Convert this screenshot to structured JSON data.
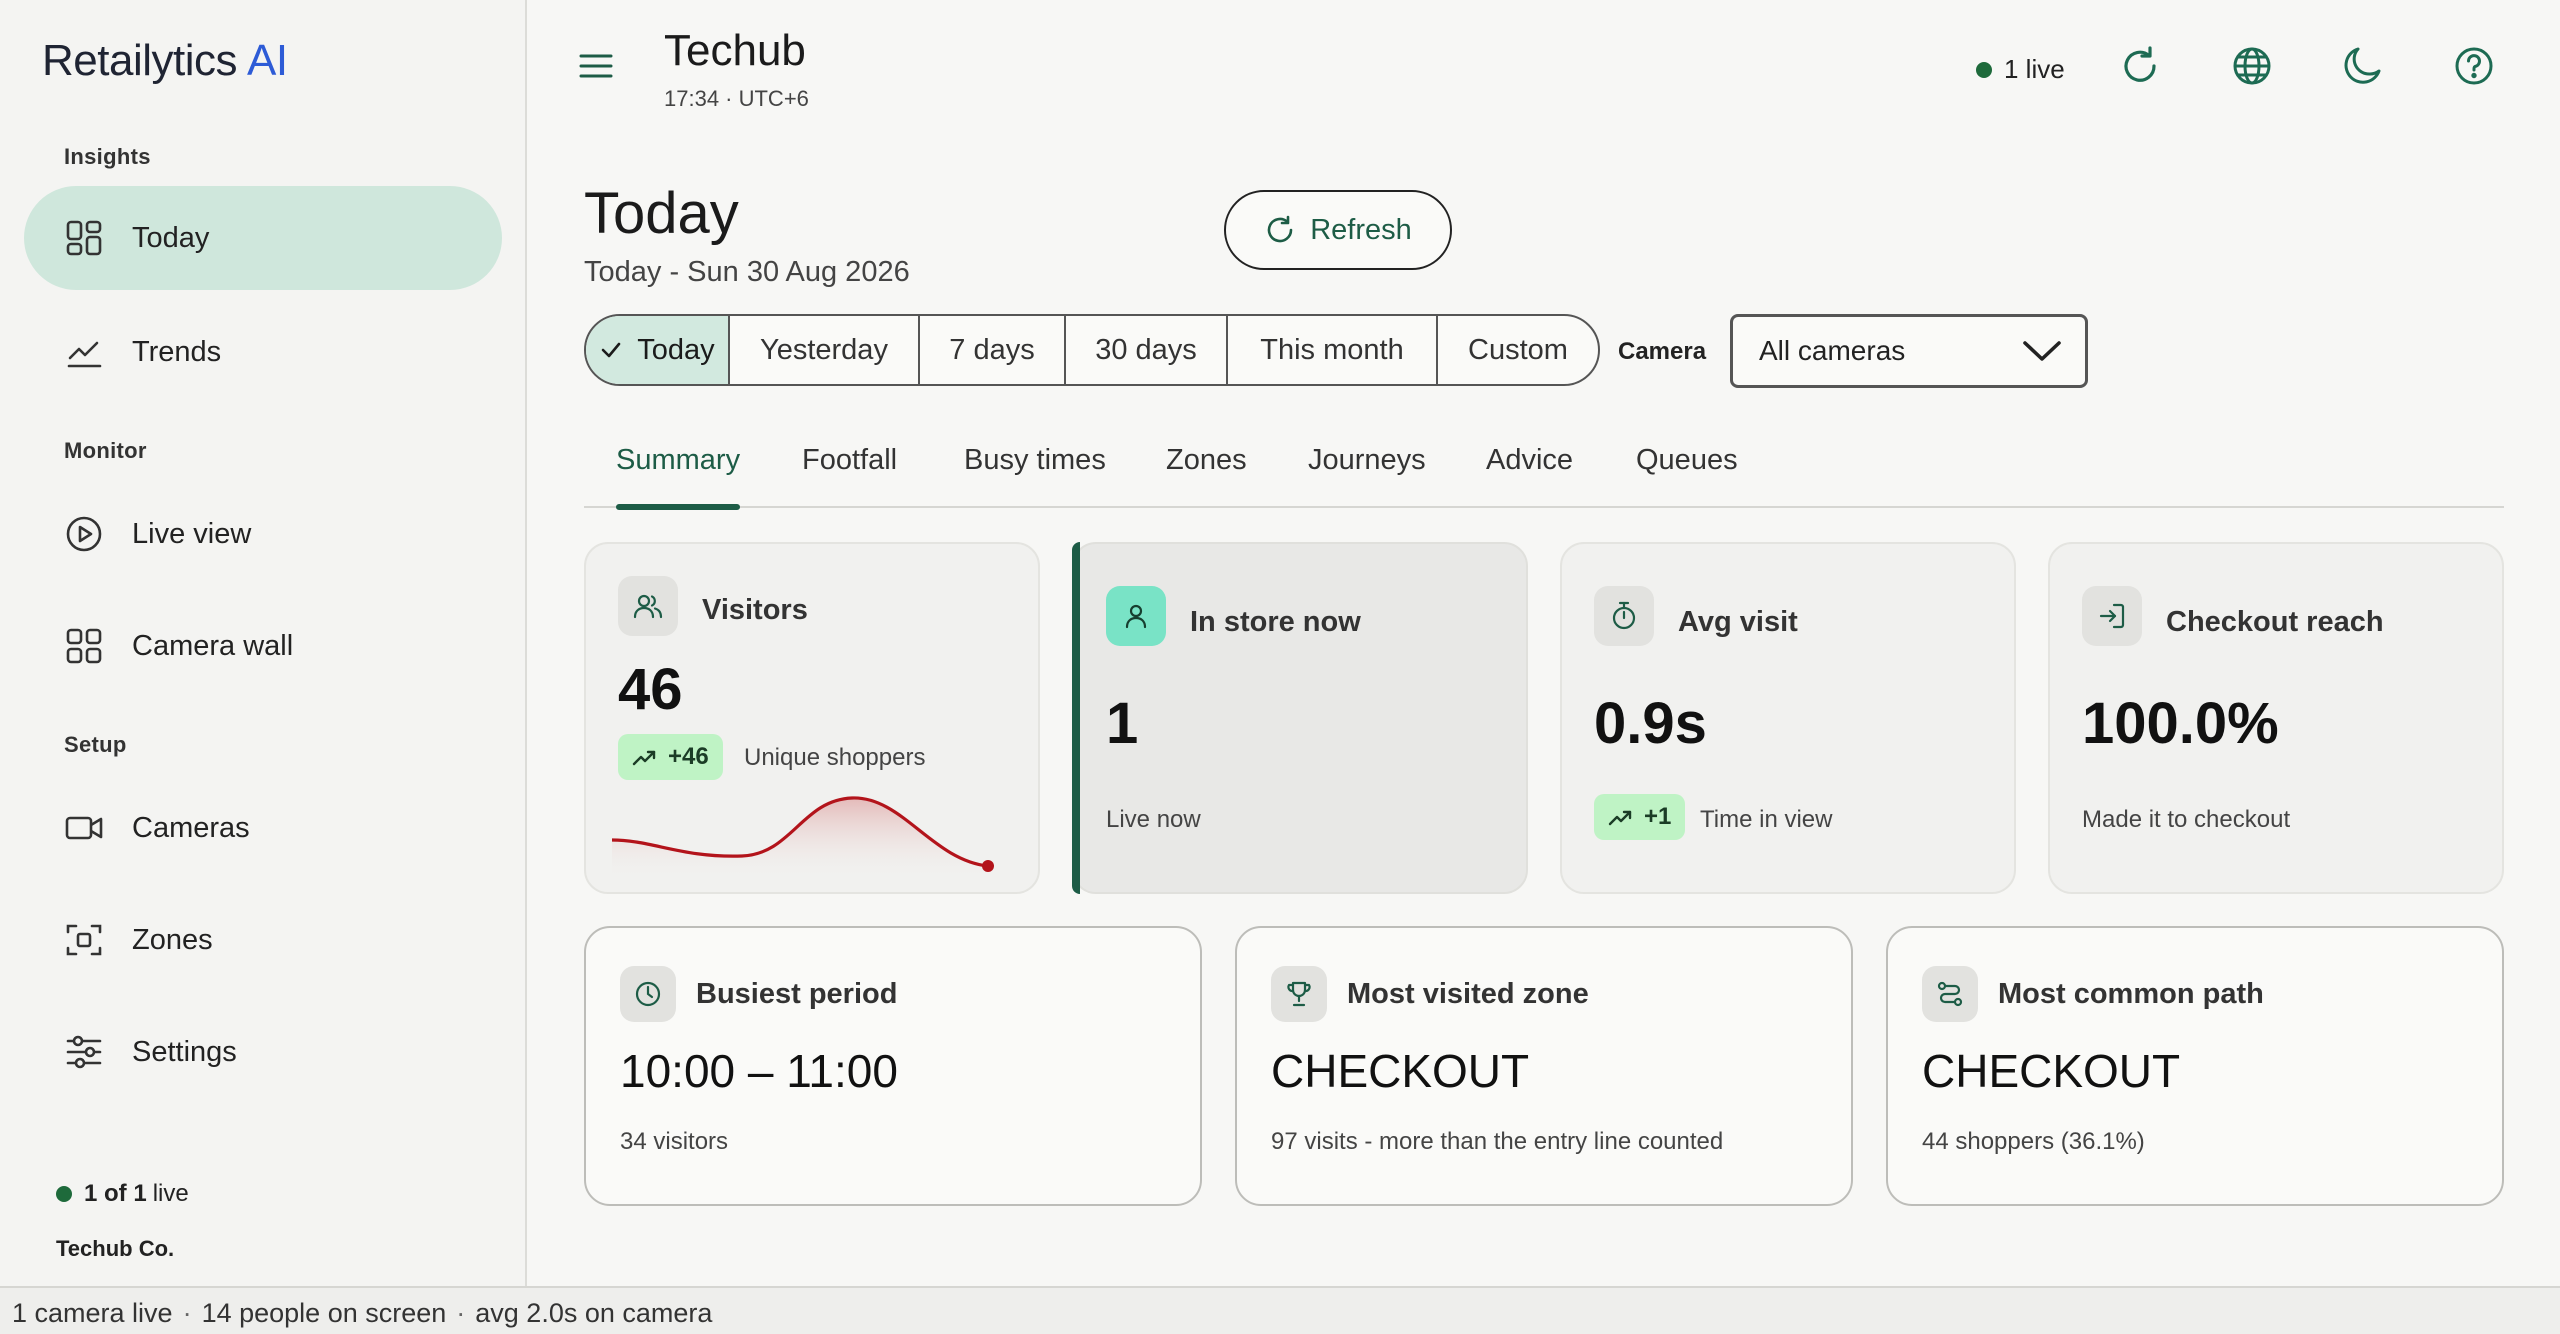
{
  "brand": {
    "name": "Retailytics",
    "suffix": "AI"
  },
  "sidebar": {
    "sections": [
      {
        "label": "Insights"
      },
      {
        "label": "Monitor"
      },
      {
        "label": "Setup"
      }
    ],
    "items": [
      {
        "label": "Today",
        "icon": "dashboard-icon",
        "active": true
      },
      {
        "label": "Trends",
        "icon": "trend-chart-icon"
      },
      {
        "label": "Live view",
        "icon": "play-circle-icon"
      },
      {
        "label": "Camera wall",
        "icon": "grid-icon"
      },
      {
        "label": "Cameras",
        "icon": "video-camera-icon"
      },
      {
        "label": "Zones",
        "icon": "zone-frame-icon"
      },
      {
        "label": "Settings",
        "icon": "sliders-icon"
      }
    ],
    "live_count_bold": "1 of 1",
    "live_suffix": "live",
    "org": "Techub Co."
  },
  "header": {
    "store": "Techub",
    "time": "17:34 · UTC+6",
    "live": "1 live",
    "buttons": [
      "refresh-icon",
      "globe-icon",
      "moon-icon",
      "help-icon"
    ]
  },
  "page": {
    "title": "Today",
    "date": "Today - Sun 30 Aug 2026",
    "refresh_label": "Refresh"
  },
  "ranges": [
    {
      "label": "Today",
      "active": true
    },
    {
      "label": "Yesterday"
    },
    {
      "label": "7 days"
    },
    {
      "label": "30 days"
    },
    {
      "label": "This month"
    },
    {
      "label": "Custom"
    }
  ],
  "camera": {
    "label": "Camera",
    "selected": "All cameras"
  },
  "tabs": [
    {
      "label": "Summary",
      "active": true
    },
    {
      "label": "Footfall"
    },
    {
      "label": "Busy times"
    },
    {
      "label": "Zones"
    },
    {
      "label": "Journeys"
    },
    {
      "label": "Advice"
    },
    {
      "label": "Queues"
    }
  ],
  "kpis": {
    "visitors": {
      "title": "Visitors",
      "value": "46",
      "delta": "+46",
      "sub": "Unique shoppers"
    },
    "in_store": {
      "title": "In store now",
      "value": "1",
      "sub": "Live now"
    },
    "avg_visit": {
      "title": "Avg visit",
      "value": "0.9s",
      "delta": "+1",
      "sub": "Time in view"
    },
    "checkout": {
      "title": "Checkout reach",
      "value": "100.0%",
      "sub": "Made it to checkout"
    }
  },
  "insights": {
    "busiest": {
      "title": "Busiest period",
      "value": "10:00 – 11:00",
      "sub": "34 visitors"
    },
    "zone": {
      "title": "Most visited zone",
      "value": "CHECKOUT",
      "sub": "97 visits - more than the entry line counted"
    },
    "path": {
      "title": "Most common path",
      "value": "CHECKOUT",
      "sub": "44 shoppers (36.1%)"
    }
  },
  "statusbar": {
    "items": [
      "1 camera live",
      "14 people on screen",
      "avg 2.0s on camera"
    ]
  },
  "colors": {
    "accent": "#1d5c46",
    "active_bg": "#cfe7dc",
    "delta_bg": "#bff3c5",
    "spark": "#b3141b",
    "live_dot": "#1e6a3b"
  }
}
